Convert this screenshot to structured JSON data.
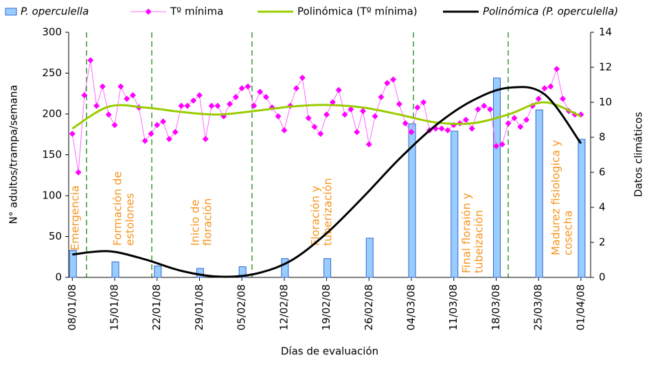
{
  "chart_data": {
    "type": "combo",
    "xlabel": "Días de evaluación",
    "ylabel": "N° adultos/trampa/semana",
    "y2label": "Datos climáticos",
    "xlim": [
      -0.6,
      85.6
    ],
    "xticks": [
      {
        "value": 0,
        "label": "08/01/08"
      },
      {
        "value": 7,
        "label": "15/01/08"
      },
      {
        "value": 14,
        "label": "22/01/08"
      },
      {
        "value": 21,
        "label": "29/01/08"
      },
      {
        "value": 28,
        "label": "05/02/08"
      },
      {
        "value": 35,
        "label": "12/02/08"
      },
      {
        "value": 42,
        "label": "19/02/08"
      },
      {
        "value": 49,
        "label": "26/02/08"
      },
      {
        "value": 56,
        "label": "04/03/08"
      },
      {
        "value": 63,
        "label": "11/03/08"
      },
      {
        "value": 70,
        "label": "18/03/08"
      },
      {
        "value": 77,
        "label": "25/03/08"
      },
      {
        "value": 84,
        "label": "01/04/08"
      }
    ],
    "ylim": [
      0,
      300
    ],
    "yticks": [
      0,
      50,
      100,
      150,
      200,
      250,
      300
    ],
    "y2lim": [
      0,
      14
    ],
    "y2ticks": [
      0,
      2,
      4,
      6,
      8,
      10,
      12,
      14
    ],
    "series": [
      {
        "name": "P. operculella",
        "type": "bar",
        "color": "#99ccff",
        "x": [
          0,
          7,
          14,
          21,
          28,
          35,
          42,
          49,
          56,
          63,
          70,
          77,
          84
        ],
        "values": [
          33,
          19,
          14,
          11,
          13,
          23,
          23,
          48,
          188,
          179,
          244,
          205,
          169
        ]
      },
      {
        "name": "Tº mínima",
        "type": "line",
        "axis": "y2",
        "marker": "diamond",
        "color": "#ff00ff",
        "x": [
          0,
          1,
          2,
          3,
          4,
          5,
          6,
          7,
          8,
          9,
          10,
          11,
          12,
          13,
          14,
          15,
          16,
          17,
          18,
          19,
          20,
          21,
          22,
          23,
          24,
          25,
          26,
          27,
          28,
          29,
          30,
          31,
          32,
          33,
          34,
          35,
          36,
          37,
          38,
          39,
          40,
          41,
          42,
          43,
          44,
          45,
          46,
          47,
          48,
          49,
          50,
          51,
          52,
          53,
          54,
          55,
          56,
          57,
          58,
          59,
          60,
          61,
          62,
          63,
          64,
          65,
          66,
          67,
          68,
          69,
          70,
          71,
          72,
          73,
          74,
          75,
          76,
          77,
          78,
          79,
          80,
          81,
          82,
          83,
          84
        ],
        "values": [
          8.2,
          6.0,
          10.4,
          12.4,
          9.8,
          10.9,
          9.3,
          8.7,
          10.9,
          10.2,
          10.4,
          9.7,
          7.8,
          8.2,
          8.7,
          8.9,
          7.9,
          8.3,
          9.8,
          9.8,
          10.1,
          10.4,
          7.9,
          9.8,
          9.8,
          9.2,
          9.9,
          10.3,
          10.8,
          10.9,
          9.8,
          10.6,
          10.3,
          9.7,
          9.2,
          8.4,
          9.8,
          10.8,
          11.4,
          9.1,
          8.6,
          8.2,
          9.3,
          10.0,
          10.7,
          9.3,
          9.6,
          8.3,
          9.5,
          7.6,
          9.2,
          10.3,
          11.1,
          11.3,
          9.9,
          8.8,
          8.3,
          9.7,
          10.0,
          8.4,
          8.5,
          8.5,
          8.4,
          8.7,
          8.8,
          9.0,
          8.5,
          9.6,
          9.8,
          9.6,
          7.5,
          7.6,
          8.8,
          9.1,
          8.6,
          9.0,
          9.8,
          10.2,
          10.8,
          10.9,
          11.9,
          10.2,
          9.5,
          9.3,
          9.3
        ]
      },
      {
        "name": "Polinómica (Tº mínima)",
        "type": "line",
        "axis": "y2",
        "smooth": true,
        "color": "#99cc00",
        "x": [
          0,
          6,
          12,
          18,
          24,
          30,
          36,
          42,
          48,
          54,
          60,
          66,
          72,
          78,
          84
        ],
        "values": [
          8.5,
          9.75,
          9.7,
          9.45,
          9.3,
          9.5,
          9.75,
          9.85,
          9.7,
          9.3,
          8.85,
          8.8,
          9.3,
          10.0,
          9.2
        ]
      },
      {
        "name": "Polinómica (P. operculella)",
        "type": "line",
        "smooth": true,
        "color": "#000000",
        "x": [
          0,
          6,
          12,
          18,
          24,
          30,
          36,
          42,
          48,
          54,
          60,
          66,
          72,
          78,
          84
        ],
        "values": [
          28,
          32,
          22,
          8,
          1,
          4,
          20,
          54,
          98,
          145,
          186,
          216,
          232,
          224,
          164
        ]
      }
    ],
    "annotations": [
      [
        "Emergencia"
      ],
      [
        "Formación de",
        "estolones"
      ],
      [
        "Inicio de",
        "floración"
      ],
      [
        "Floración y",
        "tuberización"
      ],
      [
        "Final floraión y",
        "tubeización"
      ],
      [
        "Madurez fisiologica y",
        "cosecha"
      ]
    ]
  }
}
